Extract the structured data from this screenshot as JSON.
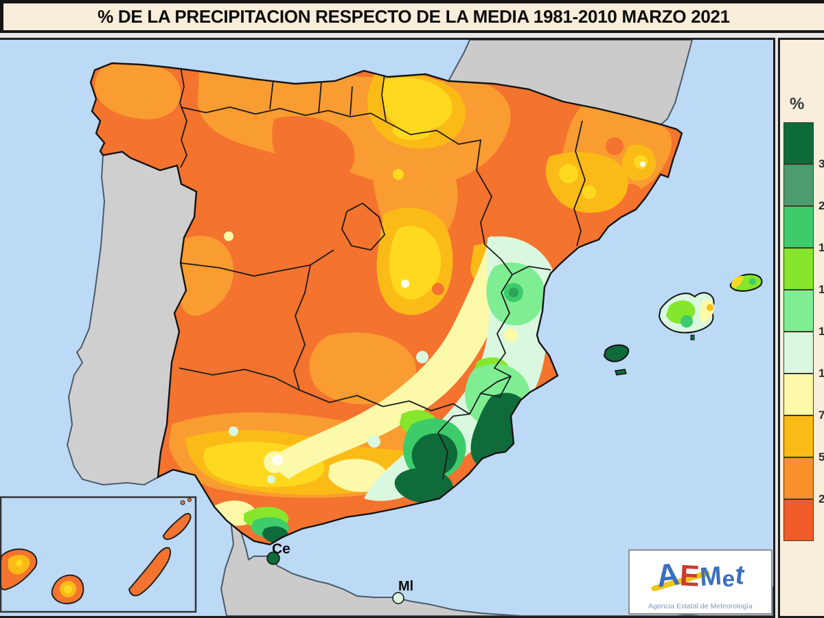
{
  "title": "% DE LA PRECIPITACION RESPECTO DE LA MEDIA 1981-2010 MARZO 2021",
  "legend": {
    "unit": "%",
    "entries": [
      {
        "color": "#0C6B38",
        "boundary_label": "3"
      },
      {
        "color": "#4D9C6E",
        "boundary_label": "2"
      },
      {
        "color": "#3DCB6B",
        "boundary_label": "1"
      },
      {
        "color": "#86E62C",
        "boundary_label": "1"
      },
      {
        "color": "#7FEE92",
        "boundary_label": "1"
      },
      {
        "color": "#D9F8DF",
        "boundary_label": "1"
      },
      {
        "color": "#FCF9A9",
        "boundary_label": "7"
      },
      {
        "color": "#FBBB17",
        "boundary_label": "5"
      },
      {
        "color": "#F8902B",
        "boundary_label": "2"
      },
      {
        "color": "#F25C2A",
        "boundary_label": ""
      }
    ]
  },
  "map": {
    "markers": [
      {
        "label": "Ce",
        "dot_color": "#0F6B3A"
      },
      {
        "label": "Ml",
        "dot_color": "#D9F8DF"
      }
    ],
    "palette": {
      "sea": "#BCDAF6",
      "neighbor_land": "#CBCBCB",
      "spain_base_orange": "#F4732E",
      "light_orange": "#F99C31",
      "amber": "#FBBB17",
      "yellow": "#FFD91F",
      "pale_yellow": "#FCF9A9",
      "pale_green": "#D9F8DF",
      "spring_green": "#7FEE92",
      "emerald": "#3DCB6B",
      "lime": "#86E62C",
      "dark_green": "#0F6B3A"
    }
  },
  "logo": {
    "letters": [
      {
        "char": "A",
        "color": "#3A6FC0"
      },
      {
        "char": "E",
        "color": "#C93B2C"
      },
      {
        "char": "M",
        "color": "#3A6FC0"
      },
      {
        "char": "e",
        "color": "#3A6FC0"
      },
      {
        "char": "t",
        "color": "#3A6FC0"
      }
    ],
    "subtitle": "Agencia Estatal de Meteorología"
  }
}
